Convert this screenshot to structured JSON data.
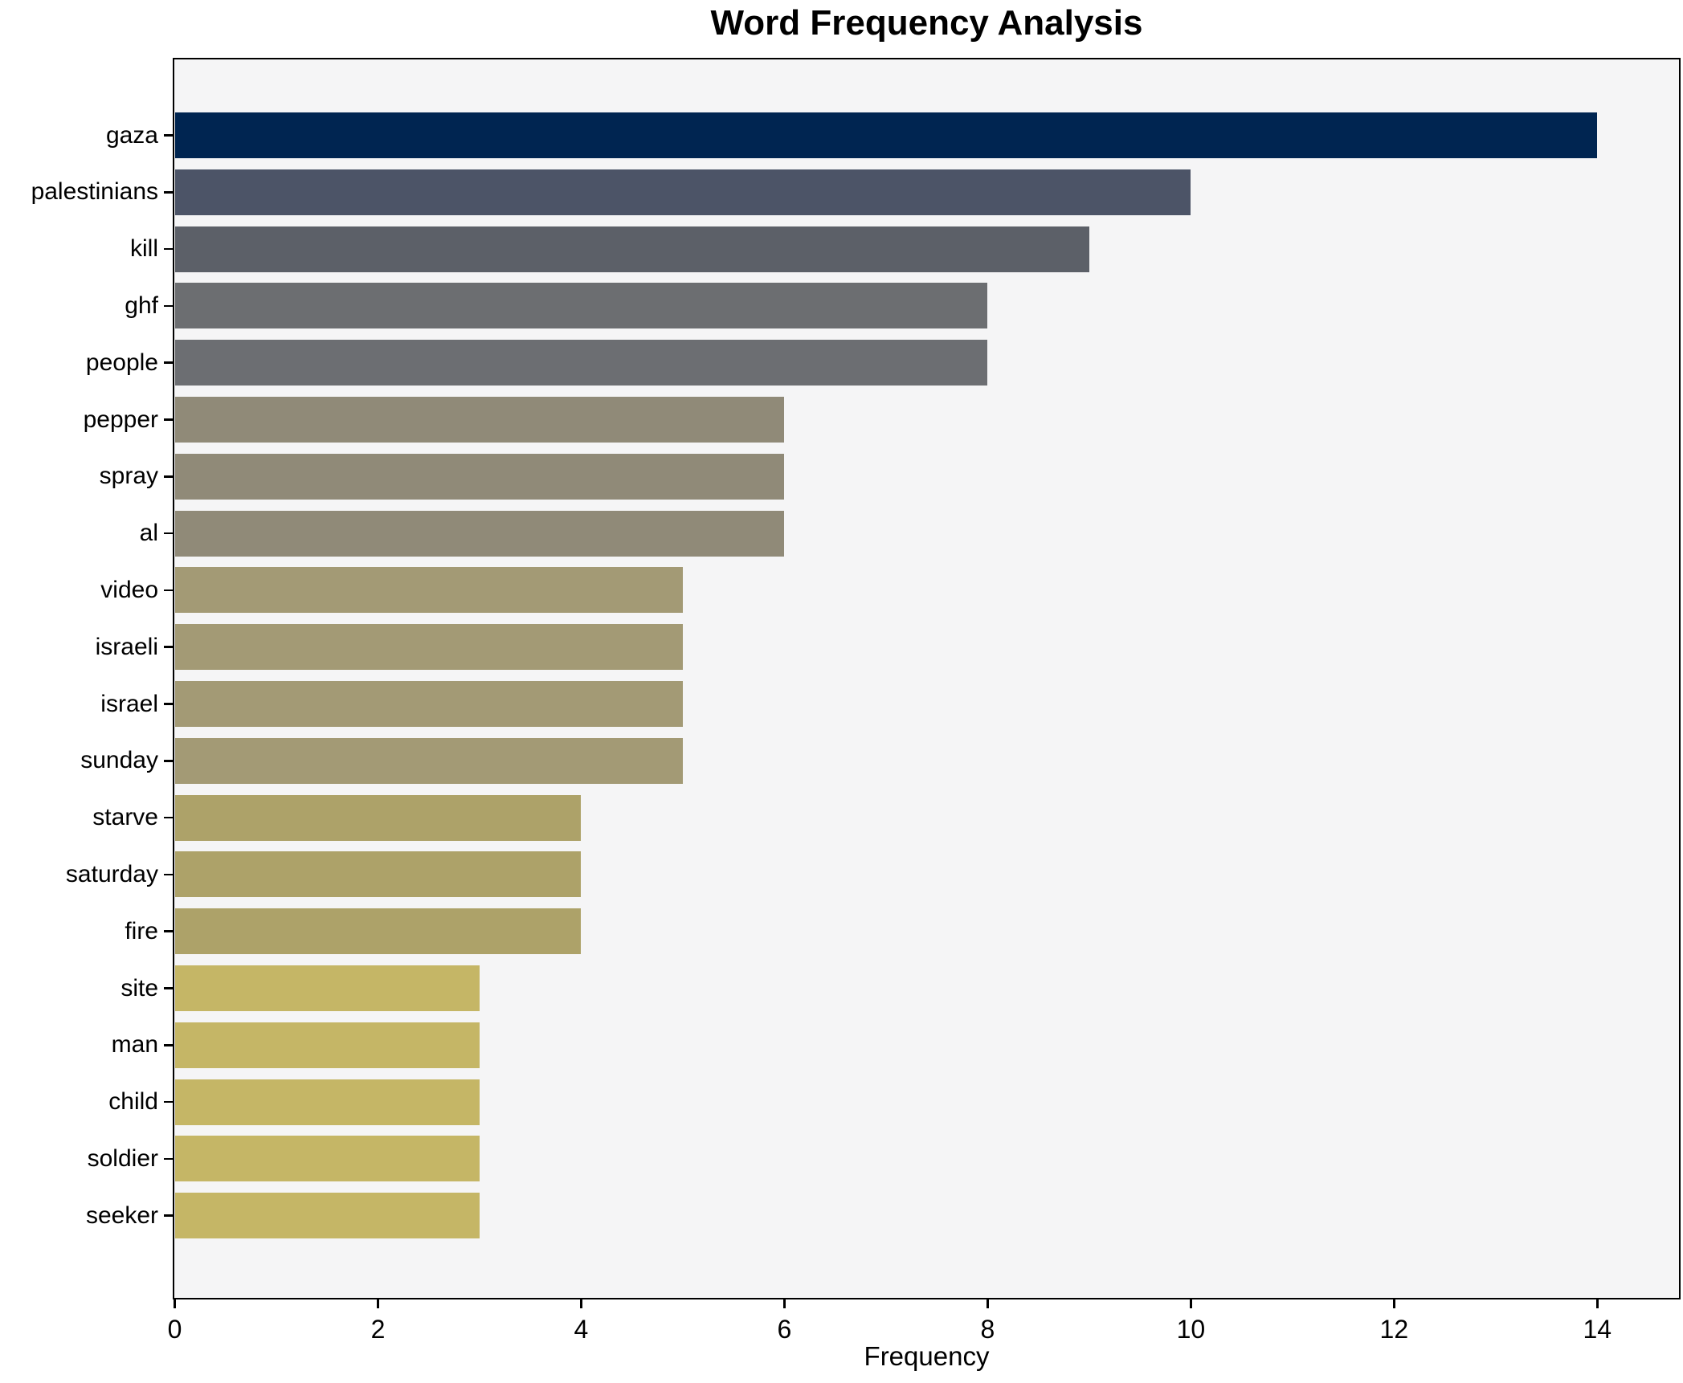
{
  "chart_data": {
    "type": "bar",
    "orientation": "horizontal",
    "title": "Word Frequency Analysis",
    "xlabel": "Frequency",
    "ylabel": "",
    "categories": [
      "gaza",
      "palestinians",
      "kill",
      "ghf",
      "people",
      "pepper",
      "spray",
      "al",
      "video",
      "israeli",
      "israel",
      "sunday",
      "starve",
      "saturday",
      "fire",
      "site",
      "man",
      "child",
      "soldier",
      "seeker"
    ],
    "values": [
      14,
      10,
      9,
      8,
      8,
      6,
      6,
      6,
      5,
      5,
      5,
      5,
      4,
      4,
      4,
      3,
      3,
      3,
      3,
      3
    ],
    "bar_colors": [
      "#002551",
      "#4c5467",
      "#5c6068",
      "#6c6e71",
      "#6c6e72",
      "#908a78",
      "#908a78",
      "#908a78",
      "#a39a75",
      "#a39a75",
      "#a39a75",
      "#a39a75",
      "#ada269",
      "#ada269",
      "#ada269",
      "#c5b666",
      "#c5b666",
      "#c5b666",
      "#c5b666",
      "#c5b666"
    ],
    "xlim": [
      0,
      14.8
    ],
    "x_ticks": [
      0,
      2,
      4,
      6,
      8,
      10,
      12,
      14
    ],
    "grid": false,
    "legend": "none",
    "plot_background": "#f5f5f6",
    "figure_background": "#ffffff",
    "spine_color": "#000000",
    "text_color": "#000000"
  }
}
